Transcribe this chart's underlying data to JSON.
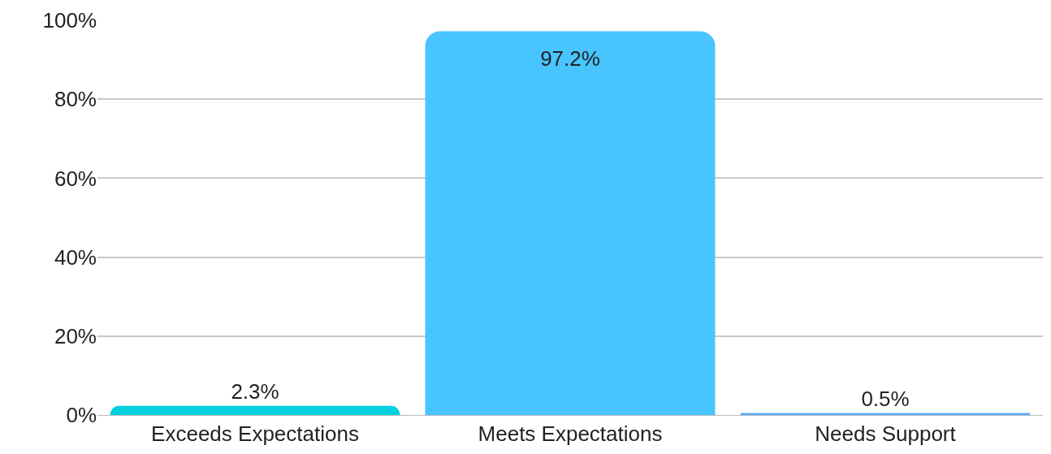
{
  "chart_data": {
    "type": "bar",
    "categories": [
      "Exceeds Expectations",
      "Meets Expectations",
      "Needs Support"
    ],
    "values": [
      2.3,
      97.2,
      0.5
    ],
    "colors": [
      "#00cfdf",
      "#48c4ff",
      "#5aa9f5"
    ],
    "value_labels": [
      "2.3%",
      "97.2%",
      "0.5%"
    ],
    "ylim": [
      0,
      100
    ],
    "yticks": [
      {
        "value": 0,
        "label": "0%"
      },
      {
        "value": 20,
        "label": "20%"
      },
      {
        "value": 40,
        "label": "40%"
      },
      {
        "value": 60,
        "label": "60%"
      },
      {
        "value": 80,
        "label": "80%"
      },
      {
        "value": 100,
        "label": "100%"
      }
    ],
    "grid": "y"
  }
}
